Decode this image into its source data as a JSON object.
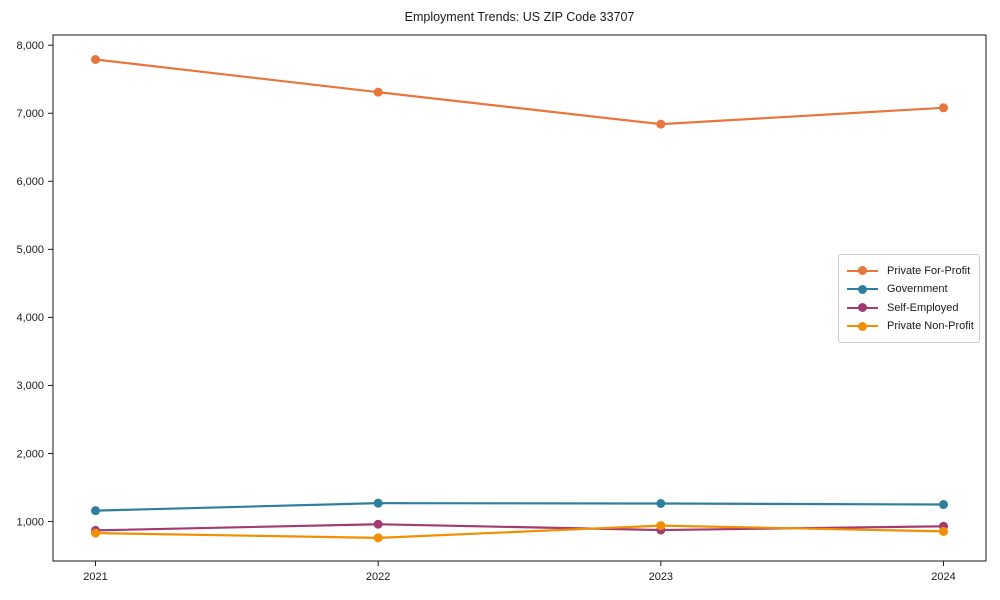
{
  "title": "Employment Trends: US ZIP Code 33707",
  "chart_data": {
    "type": "line",
    "title": "Employment Trends: US ZIP Code 33707",
    "xlabel": "",
    "ylabel": "",
    "grid": false,
    "legend_position": "center-right-inside",
    "x": [
      "2021",
      "2022",
      "2023",
      "2024"
    ],
    "series": [
      {
        "name": "Private For-Profit",
        "color": "#E8763C",
        "values": [
          7790,
          7310,
          6840,
          7080
        ]
      },
      {
        "name": "Government",
        "color": "#2E7F9E",
        "values": [
          1160,
          1270,
          1265,
          1250
        ]
      },
      {
        "name": "Self-Employed",
        "color": "#A23B72",
        "values": [
          870,
          960,
          875,
          930
        ]
      },
      {
        "name": "Private Non-Profit",
        "color": "#F18F01",
        "values": [
          830,
          760,
          940,
          855
        ]
      }
    ],
    "ylim": [
      420,
      8150
    ],
    "yticks": [
      1000,
      2000,
      3000,
      4000,
      5000,
      6000,
      7000,
      8000
    ],
    "ytick_labels": [
      "1,000",
      "2,000",
      "3,000",
      "4,000",
      "5,000",
      "6,000",
      "7,000",
      "8,000"
    ],
    "marker": "circle",
    "marker_radius": 4.5,
    "line_width": 2.2,
    "axis_color": "#1a1a1a",
    "background_color": "#ffffff"
  }
}
